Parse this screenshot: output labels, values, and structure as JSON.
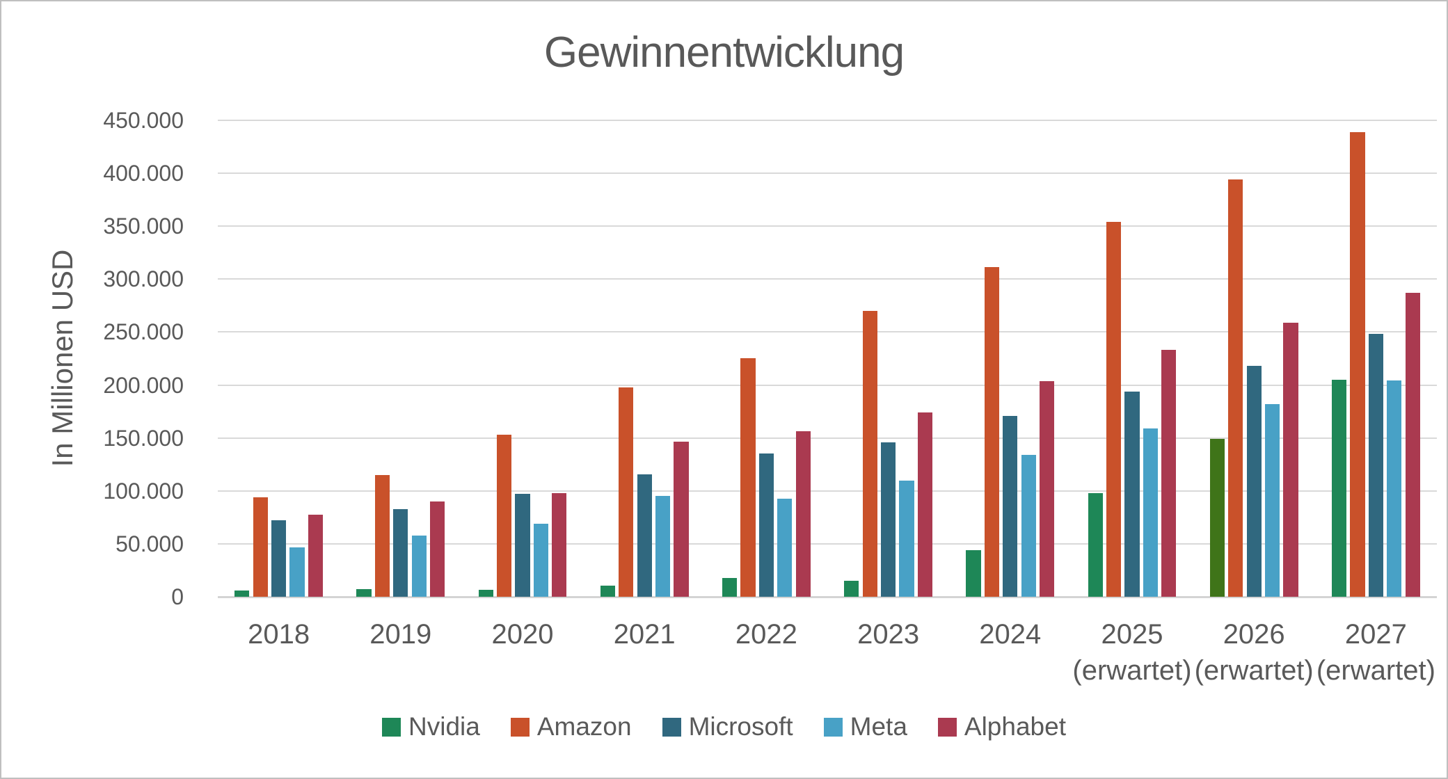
{
  "title": "Gewinnentwicklung",
  "colors": {
    "grid": "#d9d9d9",
    "baseline": "#d4d4d4",
    "text": "#595959",
    "background": "#ffffff",
    "frame": "#bfbfbf",
    "nvidia_green": "#1E8757",
    "nvidia_2026_olive": "#3F7419",
    "amazon_orange": "#C9512A",
    "microsoft_blue": "#30687F",
    "meta_lightblue": "#48A1C6",
    "alphabet_crimson": "#AA3A50"
  },
  "chart_data": {
    "type": "bar",
    "title": "Gewinnentwicklung",
    "xlabel": "",
    "ylabel": "In Millionen USD",
    "ylim": [
      0,
      450000
    ],
    "ytick_step": 50000,
    "ytick_labels": [
      "450.000",
      "400.000",
      "350.000",
      "300.000",
      "250.000",
      "200.000",
      "150.000",
      "100.000",
      "50.000",
      "0"
    ],
    "grid": true,
    "legend_position": "bottom",
    "categories": [
      {
        "label": "2018",
        "sublabel": ""
      },
      {
        "label": "2019",
        "sublabel": ""
      },
      {
        "label": "2020",
        "sublabel": ""
      },
      {
        "label": "2021",
        "sublabel": ""
      },
      {
        "label": "2022",
        "sublabel": ""
      },
      {
        "label": "2023",
        "sublabel": ""
      },
      {
        "label": "2024",
        "sublabel": ""
      },
      {
        "label": "2025",
        "sublabel": "(erwartet)"
      },
      {
        "label": "2026",
        "sublabel": "(erwartet)"
      },
      {
        "label": "2027",
        "sublabel": "(erwartet)"
      }
    ],
    "series": [
      {
        "name": "Nvidia",
        "color": "#1E8757",
        "values": [
          5822,
          7171,
          6768,
          10396,
          17475,
          15356,
          44301,
          97900,
          149000,
          205000
        ],
        "bar_color_overrides": {
          "8": "#3F7419"
        }
      },
      {
        "name": "Amazon",
        "color": "#C9512A",
        "values": [
          93731,
          114986,
          152757,
          197478,
          225152,
          270046,
          311671,
          354000,
          394000,
          439000
        ]
      },
      {
        "name": "Microsoft",
        "color": "#30687F",
        "values": [
          72007,
          82933,
          96937,
          115856,
          135620,
          146052,
          171008,
          194000,
          218000,
          248000
        ]
      },
      {
        "name": "Meta",
        "color": "#48A1C6",
        "values": [
          46483,
          57927,
          69273,
          95280,
          92791,
          109881,
          134343,
          159000,
          182000,
          204000
        ]
      },
      {
        "name": "Alphabet",
        "color": "#AA3A50",
        "values": [
          77270,
          89961,
          97795,
          146698,
          156633,
          174062,
          203712,
          233000,
          259000,
          287000
        ]
      }
    ]
  }
}
